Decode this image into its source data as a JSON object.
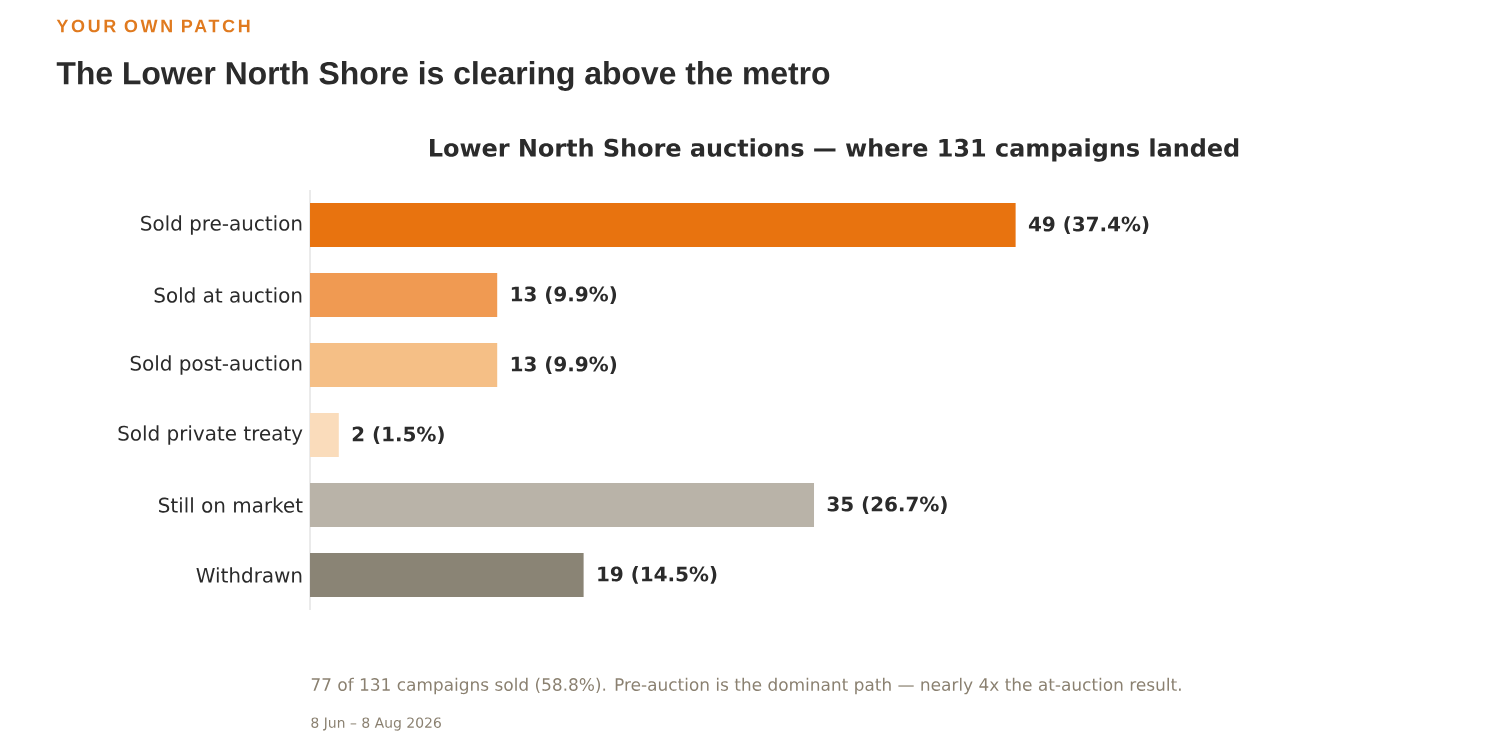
{
  "chart_data": {
    "type": "bar",
    "orientation": "horizontal",
    "title": "The Lower North Shore is clearing above the metro",
    "subtitle": "Lower North Shore auctions — where 131 campaigns landed",
    "categories": [
      "Sold pre-auction",
      "Sold at auction",
      "Sold post-auction",
      "Sold private treaty",
      "Still on market",
      "Withdrawn"
    ],
    "values": [
      49,
      13,
      13,
      2,
      35,
      19
    ],
    "colors": [
      "#e8730f",
      "#f09a52",
      "#f5bf86",
      "#fadcbb",
      "#b9b3a8",
      "#8a8475"
    ],
    "value_labels": [
      "49  (37.4%)",
      "13  (9.9%)",
      "13  (9.9%)",
      "2  (1.5%)",
      "35  (26.7%)",
      "19  (14.5%)"
    ],
    "tick_labels": "y",
    "grid": false,
    "annotations": [
      "YOUR OWN PATCH",
      "77 of 131 campaigns sold (58.8%).  Pre-auction is the dominant path — nearly 4x the at-auction result.",
      "8 Jun – 8 Aug 2026"
    ]
  }
}
